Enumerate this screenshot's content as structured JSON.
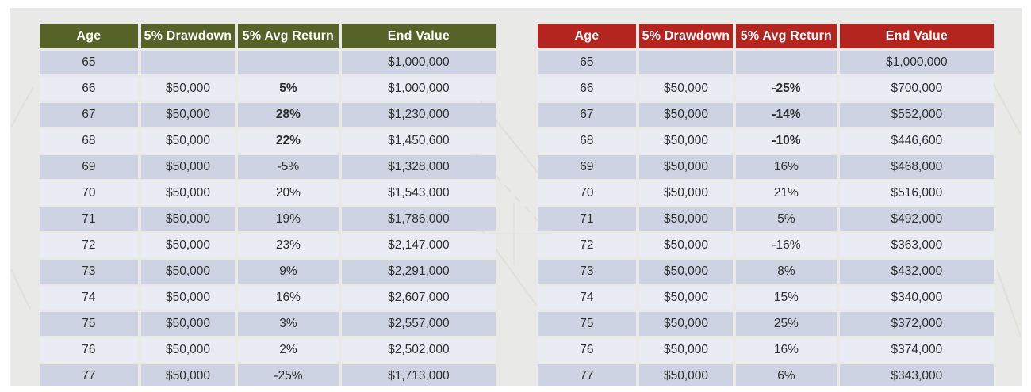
{
  "colors": {
    "page_bg": "#ffffff",
    "slide_bg": "#e9e9e7",
    "row_dark": "#cdd3e2",
    "row_light": "#e9ecf3",
    "body_text": "#2e2e2e",
    "header_text": "#ffffff",
    "green_header": "#556329",
    "red_header": "#b42520"
  },
  "chart_data": [
    {
      "type": "table",
      "theme": "green",
      "header_color": "#556329",
      "columns": [
        "Age",
        "5% Drawdown",
        "5% Avg Return",
        "End Value"
      ],
      "rows": [
        {
          "age": "65",
          "drawdown": "",
          "avg_return": "",
          "bold_return": false,
          "end_value": "$1,000,000"
        },
        {
          "age": "66",
          "drawdown": "$50,000",
          "avg_return": "5%",
          "bold_return": true,
          "end_value": "$1,000,000"
        },
        {
          "age": "67",
          "drawdown": "$50,000",
          "avg_return": "28%",
          "bold_return": true,
          "end_value": "$1,230,000"
        },
        {
          "age": "68",
          "drawdown": "$50,000",
          "avg_return": "22%",
          "bold_return": true,
          "end_value": "$1,450,600"
        },
        {
          "age": "69",
          "drawdown": "$50,000",
          "avg_return": "-5%",
          "bold_return": false,
          "end_value": "$1,328,000"
        },
        {
          "age": "70",
          "drawdown": "$50,000",
          "avg_return": "20%",
          "bold_return": false,
          "end_value": "$1,543,000"
        },
        {
          "age": "71",
          "drawdown": "$50,000",
          "avg_return": "19%",
          "bold_return": false,
          "end_value": "$1,786,000"
        },
        {
          "age": "72",
          "drawdown": "$50,000",
          "avg_return": "23%",
          "bold_return": false,
          "end_value": "$2,147,000"
        },
        {
          "age": "73",
          "drawdown": "$50,000",
          "avg_return": "9%",
          "bold_return": false,
          "end_value": "$2,291,000"
        },
        {
          "age": "74",
          "drawdown": "$50,000",
          "avg_return": "16%",
          "bold_return": false,
          "end_value": "$2,607,000"
        },
        {
          "age": "75",
          "drawdown": "$50,000",
          "avg_return": "3%",
          "bold_return": false,
          "end_value": "$2,557,000"
        },
        {
          "age": "76",
          "drawdown": "$50,000",
          "avg_return": "2%",
          "bold_return": false,
          "end_value": "$2,502,000"
        },
        {
          "age": "77",
          "drawdown": "$50,000",
          "avg_return": "-25%",
          "bold_return": false,
          "end_value": "$1,713,000"
        }
      ]
    },
    {
      "type": "table",
      "theme": "red",
      "header_color": "#b42520",
      "columns": [
        "Age",
        "5% Drawdown",
        "5% Avg Return",
        "End Value"
      ],
      "rows": [
        {
          "age": "65",
          "drawdown": "",
          "avg_return": "",
          "bold_return": false,
          "end_value": "$1,000,000"
        },
        {
          "age": "66",
          "drawdown": "$50,000",
          "avg_return": "-25%",
          "bold_return": true,
          "end_value": "$700,000"
        },
        {
          "age": "67",
          "drawdown": "$50,000",
          "avg_return": "-14%",
          "bold_return": true,
          "end_value": "$552,000"
        },
        {
          "age": "68",
          "drawdown": "$50,000",
          "avg_return": "-10%",
          "bold_return": true,
          "end_value": "$446,600"
        },
        {
          "age": "69",
          "drawdown": "$50,000",
          "avg_return": "16%",
          "bold_return": false,
          "end_value": "$468,000"
        },
        {
          "age": "70",
          "drawdown": "$50,000",
          "avg_return": "21%",
          "bold_return": false,
          "end_value": "$516,000"
        },
        {
          "age": "71",
          "drawdown": "$50,000",
          "avg_return": "5%",
          "bold_return": false,
          "end_value": "$492,000"
        },
        {
          "age": "72",
          "drawdown": "$50,000",
          "avg_return": "-16%",
          "bold_return": false,
          "end_value": "$363,000"
        },
        {
          "age": "73",
          "drawdown": "$50,000",
          "avg_return": "8%",
          "bold_return": false,
          "end_value": "$432,000"
        },
        {
          "age": "74",
          "drawdown": "$50,000",
          "avg_return": "15%",
          "bold_return": false,
          "end_value": "$340,000"
        },
        {
          "age": "75",
          "drawdown": "$50,000",
          "avg_return": "25%",
          "bold_return": false,
          "end_value": "$372,000"
        },
        {
          "age": "76",
          "drawdown": "$50,000",
          "avg_return": "16%",
          "bold_return": false,
          "end_value": "$374,000"
        },
        {
          "age": "77",
          "drawdown": "$50,000",
          "avg_return": "6%",
          "bold_return": false,
          "end_value": "$343,000"
        }
      ]
    }
  ]
}
